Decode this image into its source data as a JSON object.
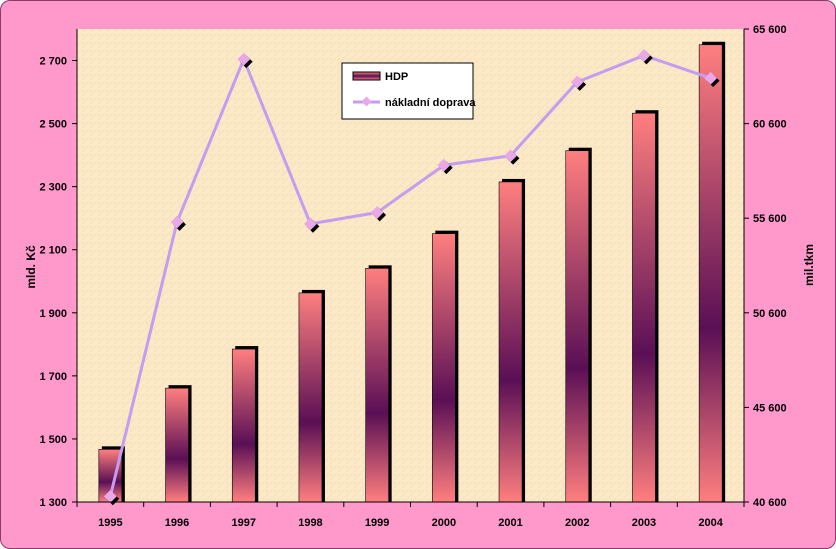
{
  "chart_data": {
    "type": "bar",
    "categories": [
      "1995",
      "1996",
      "1997",
      "1998",
      "1999",
      "2000",
      "2001",
      "2002",
      "2003",
      "2004"
    ],
    "series": [
      {
        "name": "HDP",
        "type": "bar",
        "axis": "left",
        "values": [
          1467,
          1661,
          1785,
          1963,
          2041,
          2151,
          2315,
          2414,
          2533,
          2750
        ]
      },
      {
        "name": "nákladní doprava",
        "type": "line",
        "axis": "right",
        "values": [
          40900,
          55400,
          64000,
          55300,
          55900,
          58400,
          58900,
          62800,
          64200,
          63000
        ]
      }
    ],
    "ylabel": "mld. Kč",
    "y2label": "mil.tkm",
    "ylim": [
      1300,
      2800
    ],
    "y2lim": [
      40600,
      65600
    ],
    "yticks": [
      "1 300",
      "1 500",
      "1 700",
      "1 900",
      "2 100",
      "2 300",
      "2 500",
      "2 700"
    ],
    "y2ticks": [
      "40 600",
      "45 600",
      "50 600",
      "55 600",
      "60 600",
      "65 600"
    ],
    "legend": "top-center",
    "grid": false,
    "colors": {
      "frame": "#ff99cc",
      "plot_bg": "#fbe9c8",
      "bar_edge": "#ff7f7f",
      "bar_center": "#5a0f55",
      "line": "#c49cf2",
      "marker": "#e9a8e8",
      "marker_shadow": "#000000"
    }
  }
}
